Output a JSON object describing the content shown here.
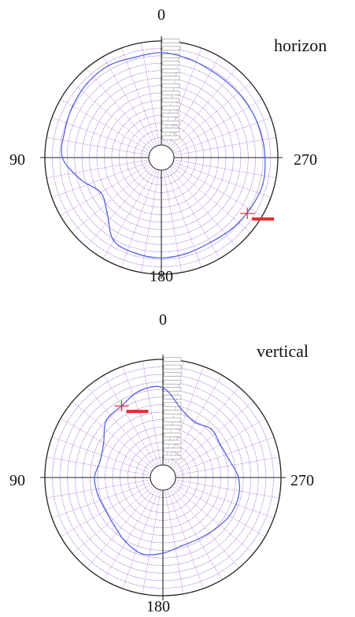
{
  "colors": {
    "grid": "#8a40c8",
    "trace": "#4a5ae0",
    "marker": "#e03030",
    "axis": "#222222"
  },
  "chart_data": [
    {
      "type": "polar-line",
      "title": "horizon",
      "angle_labels": [
        "0",
        "90",
        "180",
        "270"
      ],
      "angle_direction": "counterclockwise",
      "zero_at": "top",
      "grid": true,
      "rings": 14,
      "angles_deg": [
        0,
        15,
        30,
        45,
        60,
        75,
        90,
        105,
        120,
        135,
        150,
        165,
        180,
        195,
        210,
        225,
        240,
        255,
        270,
        285,
        300,
        315,
        330,
        345,
        360
      ],
      "radius_frac": [
        0.9,
        0.89,
        0.91,
        0.9,
        0.88,
        0.86,
        0.85,
        0.72,
        0.6,
        0.66,
        0.82,
        0.85,
        0.86,
        0.85,
        0.84,
        0.86,
        0.88,
        0.9,
        0.89,
        0.88,
        0.87,
        0.86,
        0.86,
        0.88,
        0.9
      ],
      "marker": {
        "angle_deg": 237,
        "radius_frac": 0.88,
        "label": ""
      }
    },
    {
      "type": "polar-line",
      "title": "vertical",
      "angle_labels": [
        "0",
        "90",
        "180",
        "270"
      ],
      "angle_direction": "counterclockwise",
      "zero_at": "top",
      "grid": true,
      "rings": 14,
      "angles_deg": [
        0,
        15,
        30,
        45,
        60,
        75,
        90,
        105,
        120,
        135,
        150,
        165,
        180,
        195,
        210,
        225,
        240,
        255,
        270,
        285,
        300,
        315,
        330,
        345,
        360
      ],
      "radius_frac": [
        0.76,
        0.76,
        0.7,
        0.68,
        0.58,
        0.55,
        0.58,
        0.57,
        0.56,
        0.58,
        0.63,
        0.67,
        0.64,
        0.6,
        0.6,
        0.62,
        0.65,
        0.66,
        0.64,
        0.58,
        0.56,
        0.58,
        0.54,
        0.6,
        0.76
      ],
      "marker": {
        "angle_deg": 30,
        "radius_frac": 0.7,
        "label": ""
      }
    }
  ]
}
